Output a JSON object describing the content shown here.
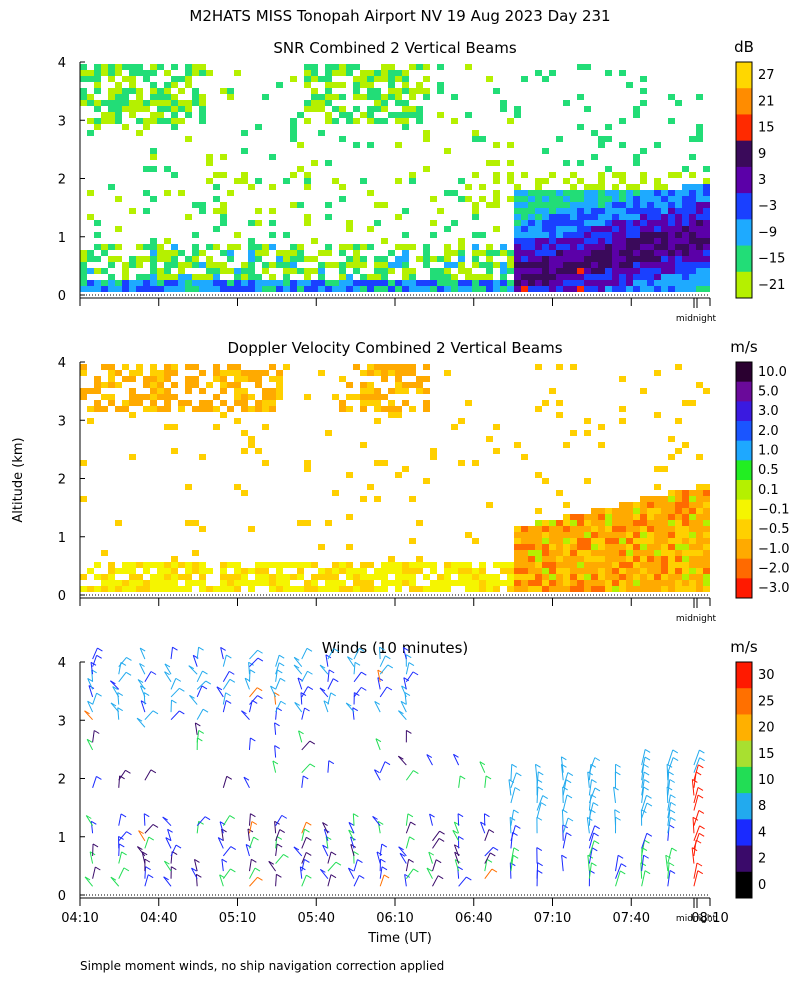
{
  "title": "M2HATS MISS Tonopah Airport NV  19 Aug 2023 Day 231",
  "footnote": "Simple moment winds, no ship navigation correction applied",
  "y_axis_label": "Altitude (km)",
  "x_axis_label": "Time (UT)",
  "x_tick_labels": [
    "04:10",
    "04:40",
    "05:10",
    "05:40",
    "06:10",
    "06:40",
    "07:10",
    "07:40",
    "08:10"
  ],
  "midnight_label": "midnight",
  "chart_data": [
    {
      "type": "heatmap",
      "title": "SNR Combined 2 Vertical Beams",
      "colorbar_unit": "dB",
      "colorbar_ticks": [
        "27",
        "21",
        "15",
        "9",
        "3",
        "−3",
        "−9",
        "−15",
        "−21"
      ],
      "colorbar_colors": [
        "#ffd700",
        "#ff8c00",
        "#ff2a00",
        "#3a0a5a",
        "#5b00a8",
        "#1a40ff",
        "#1eaaff",
        "#22dd77",
        "#b5f000"
      ],
      "ylim": [
        0,
        4
      ],
      "y_ticks": [
        "0",
        "1",
        "2",
        "3",
        "4"
      ],
      "xlim": [
        "04:10",
        "08:10"
      ]
    },
    {
      "type": "heatmap",
      "title": "Doppler Velocity Combined 2 Vertical Beams",
      "colorbar_unit": "m/s",
      "colorbar_ticks": [
        "10.0",
        "5.0",
        "3.0",
        "2.0",
        "1.0",
        "0.5",
        "0.1",
        "−0.1",
        "−0.5",
        "−1.0",
        "−2.0",
        "−3.0"
      ],
      "colorbar_colors": [
        "#2a0030",
        "#6a0a9a",
        "#3a1ae0",
        "#1a55ff",
        "#1ea8ff",
        "#22ee22",
        "#b5f000",
        "#f5f500",
        "#ffd000",
        "#ffaa00",
        "#ff6a00",
        "#ff1a00"
      ],
      "ylim": [
        0,
        4
      ],
      "y_ticks": [
        "0",
        "1",
        "2",
        "3",
        "4"
      ],
      "xlim": [
        "04:10",
        "08:10"
      ]
    },
    {
      "type": "scatter",
      "title": "Winds (10 minutes)",
      "colorbar_unit": "m/s",
      "colorbar_ticks": [
        "30",
        "25",
        "20",
        "15",
        "10",
        "8",
        "4",
        "2",
        "0"
      ],
      "colorbar_colors": [
        "#ff1a00",
        "#ff7000",
        "#ffb000",
        "#a8e030",
        "#22dd55",
        "#22aaee",
        "#1a2aff",
        "#3a0a6a",
        "#000000"
      ],
      "ylim": [
        0,
        4
      ],
      "y_ticks": [
        "0",
        "1",
        "2",
        "3",
        "4"
      ],
      "xlim": [
        "04:10",
        "08:10"
      ]
    }
  ]
}
